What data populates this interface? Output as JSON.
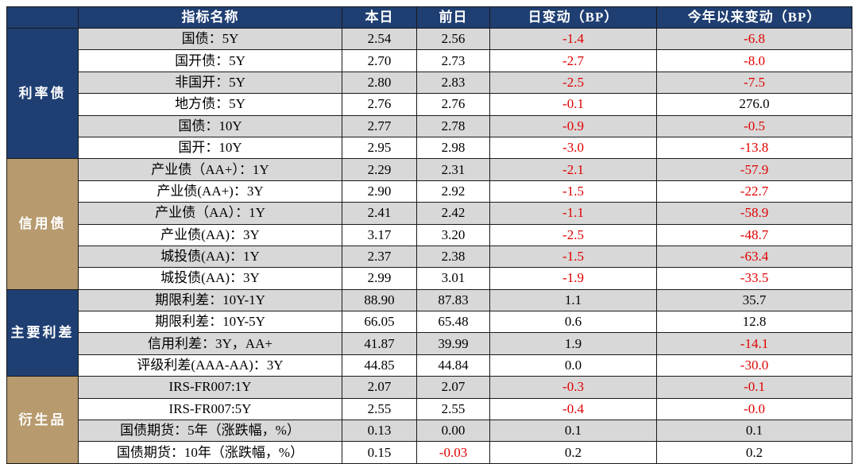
{
  "headers": [
    "指标名称",
    "本日",
    "前日",
    "日变动（BP）",
    "今年以来变动（BP）"
  ],
  "groups": [
    {
      "name": "利率债",
      "color": "#1f3f73",
      "rows": [
        {
          "name": "国债：5Y",
          "today": "2.54",
          "prev": "2.56",
          "day_change": "-1.4",
          "ytd_change": "-6.8"
        },
        {
          "name": "国开债：5Y",
          "today": "2.70",
          "prev": "2.73",
          "day_change": "-2.7",
          "ytd_change": "-8.0"
        },
        {
          "name": "非国开：5Y",
          "today": "2.80",
          "prev": "2.83",
          "day_change": "-2.5",
          "ytd_change": "-7.5"
        },
        {
          "name": "地方债：5Y",
          "today": "2.76",
          "prev": "2.76",
          "day_change": "-0.1",
          "ytd_change": "276.0"
        },
        {
          "name": "国债：10Y",
          "today": "2.77",
          "prev": "2.78",
          "day_change": "-0.9",
          "ytd_change": "-0.5"
        },
        {
          "name": "国开：10Y",
          "today": "2.95",
          "prev": "2.98",
          "day_change": "-3.0",
          "ytd_change": "-13.8"
        }
      ]
    },
    {
      "name": "信用债",
      "color": "#b79a6d",
      "rows": [
        {
          "name": "产业债（AA+）：1Y",
          "today": "2.29",
          "prev": "2.31",
          "day_change": "-2.1",
          "ytd_change": "-57.9"
        },
        {
          "name": "产业债(AA+)：3Y",
          "today": "2.90",
          "prev": "2.92",
          "day_change": "-1.5",
          "ytd_change": "-22.7"
        },
        {
          "name": "产业债（AA）：1Y",
          "today": "2.41",
          "prev": "2.42",
          "day_change": "-1.1",
          "ytd_change": "-58.9"
        },
        {
          "name": "产业债(AA)：3Y",
          "today": "3.17",
          "prev": "3.20",
          "day_change": "-2.5",
          "ytd_change": "-48.7"
        },
        {
          "name": "城投债(AA)：1Y",
          "today": "2.37",
          "prev": "2.38",
          "day_change": "-1.5",
          "ytd_change": "-63.4"
        },
        {
          "name": "城投债(AA)：3Y",
          "today": "2.99",
          "prev": "3.01",
          "day_change": "-1.9",
          "ytd_change": "-33.5"
        }
      ]
    },
    {
      "name": "主要利差",
      "color": "#1f3f73",
      "rows": [
        {
          "name": "期限利差：10Y-1Y",
          "today": "88.90",
          "prev": "87.83",
          "day_change": "1.1",
          "ytd_change": "35.7"
        },
        {
          "name": "期限利差：10Y-5Y",
          "today": "66.05",
          "prev": "65.48",
          "day_change": "0.6",
          "ytd_change": "12.8"
        },
        {
          "name": "信用利差：3Y，AA+",
          "today": "41.87",
          "prev": "39.99",
          "day_change": "1.9",
          "ytd_change": "-14.1"
        },
        {
          "name": "评级利差(AAA-AA)：3Y",
          "today": "44.85",
          "prev": "44.84",
          "day_change": "0.0",
          "ytd_change": "-30.0"
        }
      ]
    },
    {
      "name": "衍生品",
      "color": "#b79a6d",
      "rows": [
        {
          "name": "IRS-FR007:1Y",
          "today": "2.07",
          "prev": "2.07",
          "day_change": "-0.3",
          "ytd_change": "-0.1"
        },
        {
          "name": "IRS-FR007:5Y",
          "today": "2.55",
          "prev": "2.55",
          "day_change": "-0.4",
          "ytd_change": "-0.0"
        },
        {
          "name": "国债期货：5年（涨跌幅，%）",
          "today": "0.13",
          "prev": "0.00",
          "day_change": "0.1",
          "ytd_change": "0.1"
        },
        {
          "name": "国债期货：10年（涨跌幅，%）",
          "today": "0.15",
          "prev": "-0.03",
          "day_change": "0.2",
          "ytd_change": "0.2"
        }
      ]
    }
  ]
}
